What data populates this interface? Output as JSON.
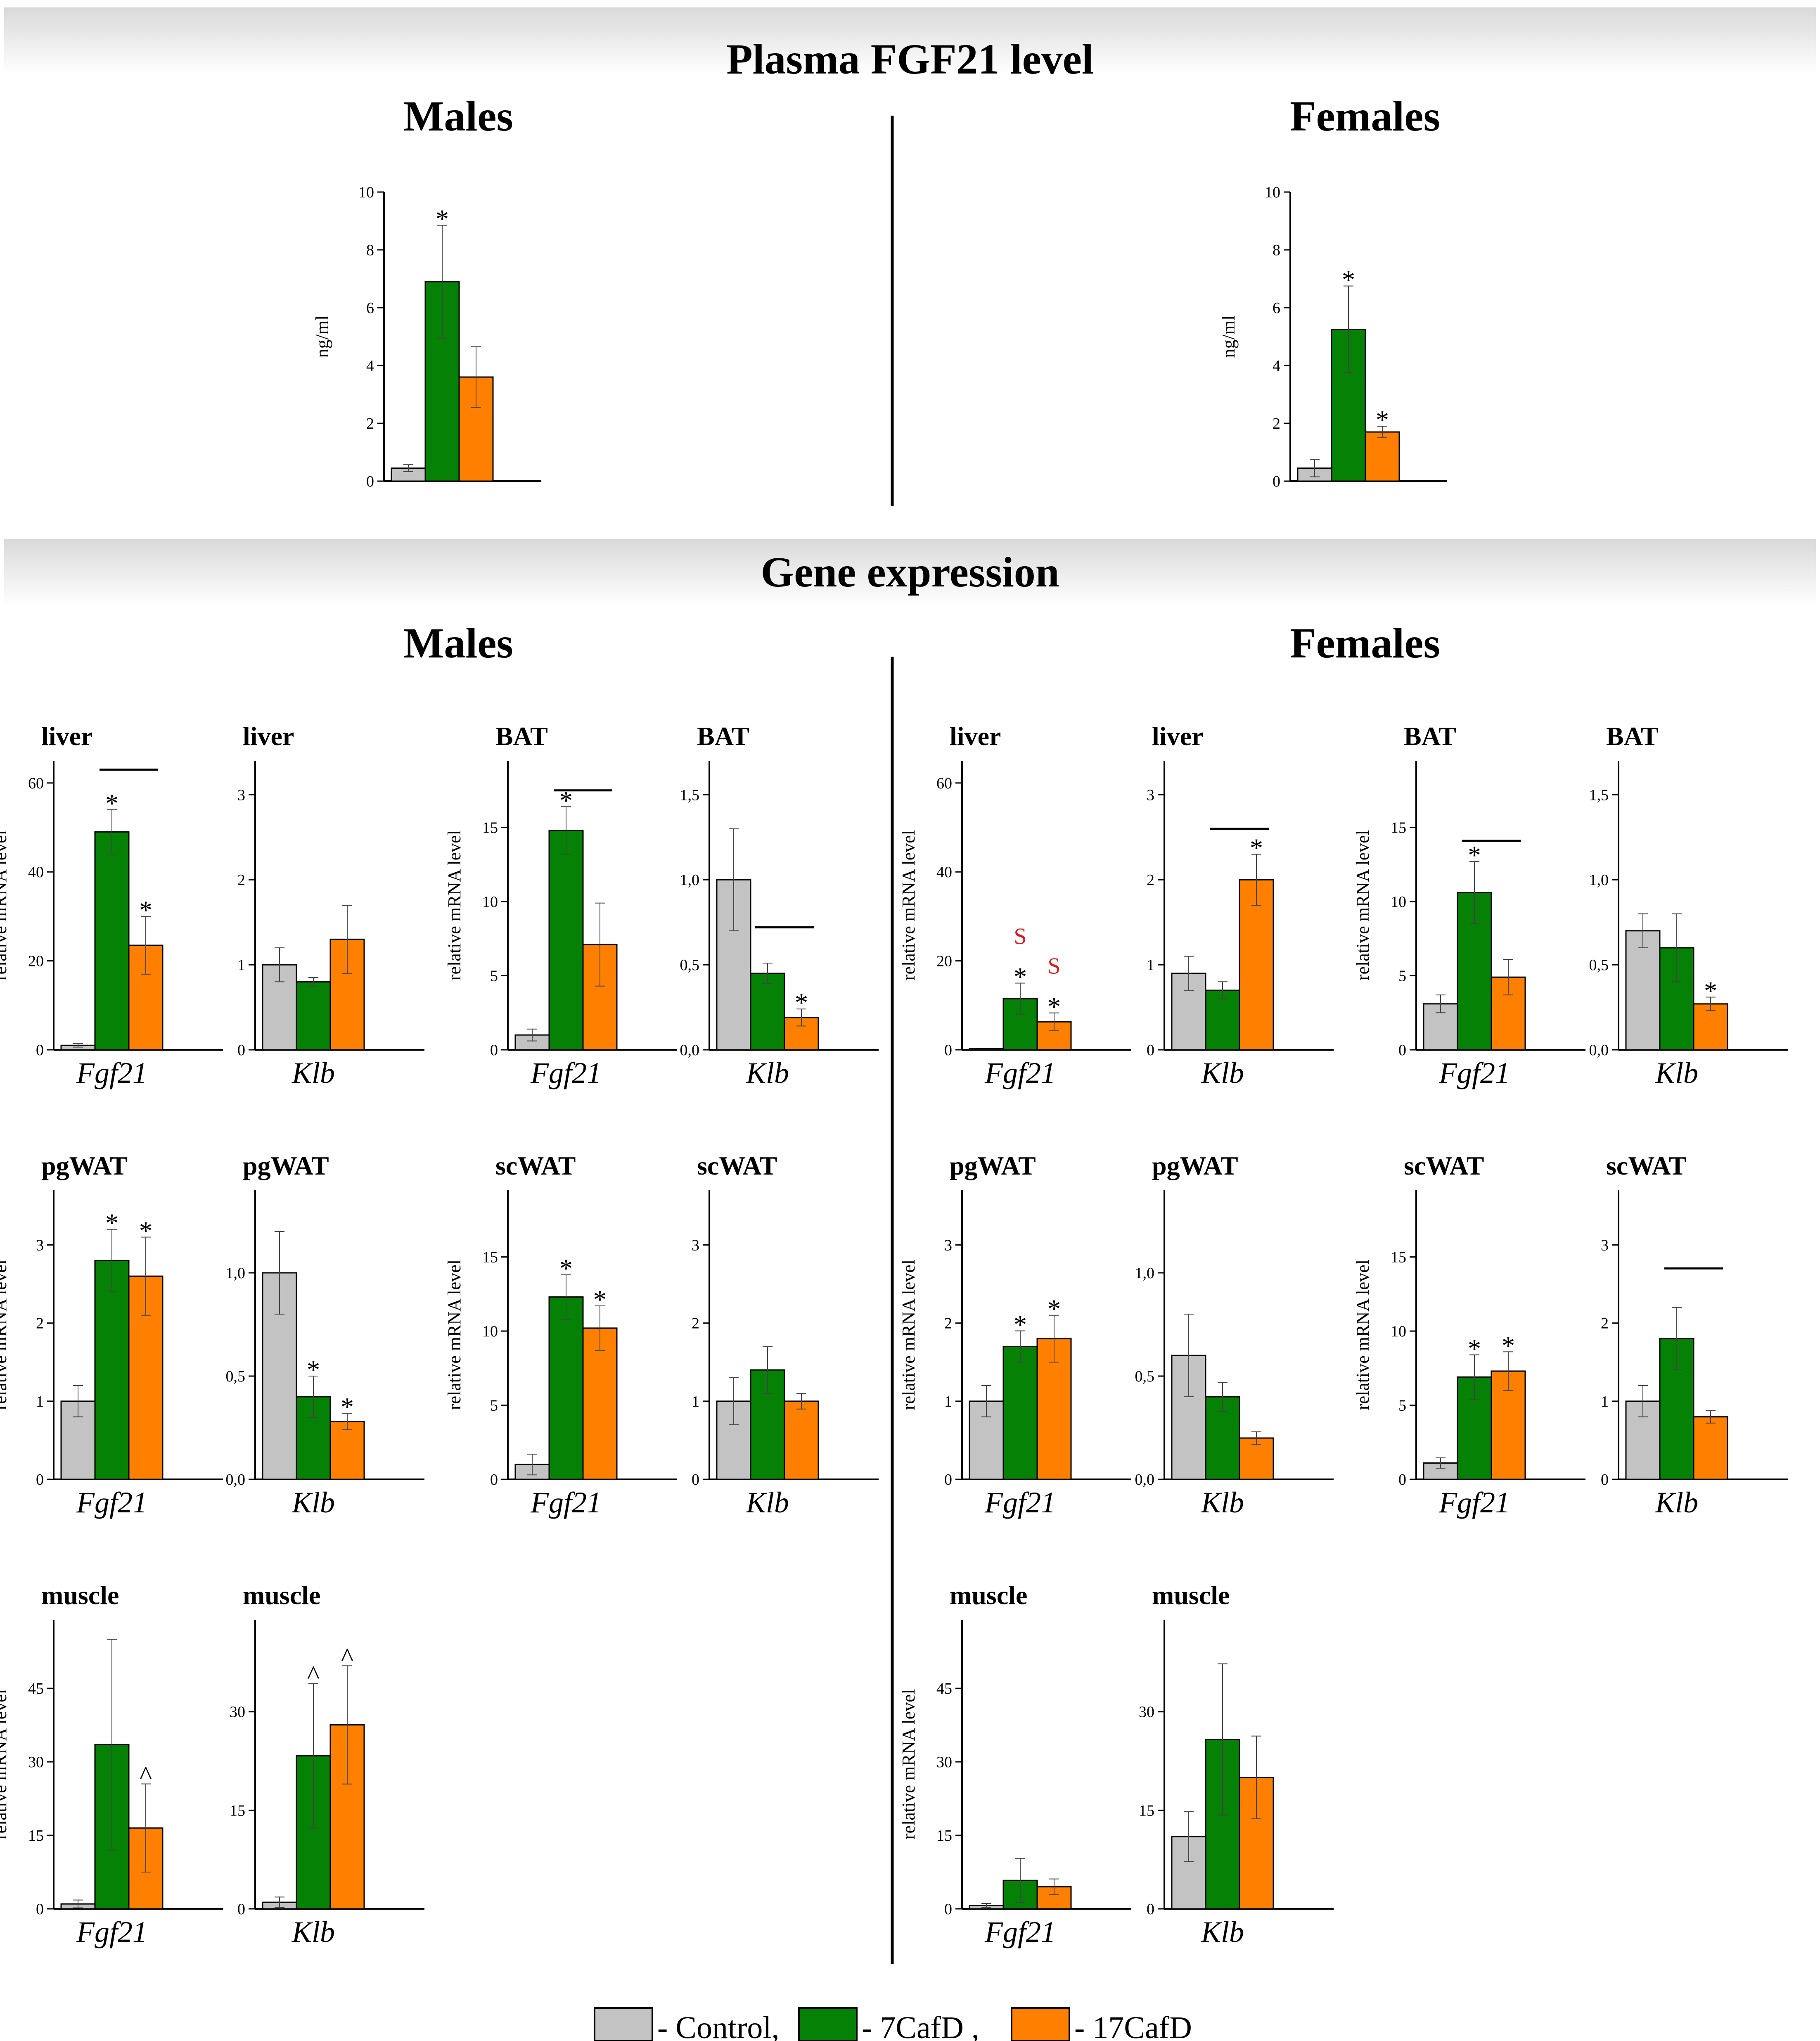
{
  "colors": {
    "control": "#c3c3c3",
    "cafd7": "#058105",
    "cafd17": "#ff8000",
    "stroke": "#000000",
    "red": "#e0191b"
  },
  "sections": {
    "plasma": "Plasma FGF21 level",
    "gene": "Gene expression"
  },
  "groups": {
    "males": "Males",
    "females": "Females"
  },
  "legend": [
    {
      "key": "control",
      "label": "- Control,"
    },
    {
      "key": "cafd7",
      "label": "- 7CafD ,"
    },
    {
      "key": "cafd17",
      "label": "- 17CafD"
    }
  ],
  "chart_data": [
    {
      "id": "plasma-males",
      "type": "bar",
      "title": "",
      "ylabel": "ng/ml",
      "ylim": [
        0,
        10
      ],
      "yticks": [
        "0",
        "2",
        "4",
        "6",
        "8",
        "10"
      ],
      "xlabel": "",
      "series": [
        {
          "name": "Control",
          "value": 0.45,
          "err": 0.12
        },
        {
          "name": "7CafD",
          "value": 6.9,
          "err": 1.95
        },
        {
          "name": "17CafD",
          "value": 3.6,
          "err": 1.05
        }
      ],
      "annotations": {
        "marks": [
          {
            "series": 1,
            "text": "*"
          }
        ],
        "lines": []
      }
    },
    {
      "id": "plasma-females",
      "type": "bar",
      "title": "",
      "ylabel": "ng/ml",
      "ylim": [
        0,
        10
      ],
      "yticks": [
        "0",
        "2",
        "4",
        "6",
        "8",
        "10"
      ],
      "xlabel": "",
      "series": [
        {
          "name": "Control",
          "value": 0.45,
          "err": 0.3
        },
        {
          "name": "7CafD",
          "value": 5.25,
          "err": 1.5
        },
        {
          "name": "17CafD",
          "value": 1.7,
          "err": 0.2
        }
      ],
      "annotations": {
        "marks": [
          {
            "series": 1,
            "text": "*"
          },
          {
            "series": 2,
            "text": "*"
          }
        ],
        "lines": []
      }
    },
    {
      "id": "m-liver-fgf21",
      "type": "bar",
      "title": "liver",
      "ylabel": "relative mRNA level",
      "ylim": [
        0,
        65
      ],
      "yticks": [
        "0",
        "20",
        "40",
        "60"
      ],
      "tickvals": [
        0,
        20,
        40,
        60
      ],
      "xlabel": "Fgf21",
      "series": [
        {
          "name": "Control",
          "value": 1,
          "err": 0.4
        },
        {
          "name": "7CafD",
          "value": 49,
          "err": 5
        },
        {
          "name": "17CafD",
          "value": 23.5,
          "err": 6.5
        }
      ],
      "annotations": {
        "marks": [
          {
            "series": 1,
            "text": "*"
          },
          {
            "series": 2,
            "text": "*"
          }
        ],
        "lines": [
          {
            "from": 1,
            "to": 2,
            "value": 63
          }
        ]
      }
    },
    {
      "id": "m-liver-klb",
      "type": "bar",
      "title": "liver",
      "ylabel": "",
      "ylim": [
        0,
        3.4
      ],
      "yticks": [
        "0",
        "1",
        "2",
        "3"
      ],
      "tickvals": [
        0,
        1,
        2,
        3
      ],
      "xlabel": "Klb",
      "series": [
        {
          "name": "Control",
          "value": 1,
          "err": 0.2
        },
        {
          "name": "7CafD",
          "value": 0.8,
          "err": 0.05
        },
        {
          "name": "17CafD",
          "value": 1.3,
          "err": 0.4
        }
      ],
      "annotations": {
        "marks": [],
        "lines": []
      }
    },
    {
      "id": "m-bat-fgf21",
      "type": "bar",
      "title": "BAT",
      "ylabel": "relative mRNA level",
      "ylim": [
        0,
        19.5
      ],
      "yticks": [
        "0",
        "5",
        "10",
        "15"
      ],
      "tickvals": [
        0,
        5,
        10,
        15
      ],
      "xlabel": "Fgf21",
      "series": [
        {
          "name": "Control",
          "value": 1,
          "err": 0.4
        },
        {
          "name": "7CafD",
          "value": 14.8,
          "err": 1.6
        },
        {
          "name": "17CafD",
          "value": 7.1,
          "err": 2.8
        }
      ],
      "annotations": {
        "marks": [
          {
            "series": 1,
            "text": "*"
          }
        ],
        "lines": [
          {
            "from": 1,
            "to": 2,
            "value": 17.5
          }
        ]
      }
    },
    {
      "id": "m-bat-klb",
      "type": "bar",
      "title": "BAT",
      "ylabel": "",
      "ylim": [
        0,
        1.7
      ],
      "yticks": [
        "0,0",
        "0,5",
        "1,0",
        "1,5"
      ],
      "tickvals": [
        0,
        0.5,
        1,
        1.5
      ],
      "xlabel": "Klb",
      "series": [
        {
          "name": "Control",
          "value": 1,
          "err": 0.3
        },
        {
          "name": "7CafD",
          "value": 0.45,
          "err": 0.06
        },
        {
          "name": "17CafD",
          "value": 0.19,
          "err": 0.05
        }
      ],
      "annotations": {
        "marks": [
          {
            "series": 2,
            "text": "*"
          }
        ],
        "lines": [
          {
            "from": 1,
            "to": 2,
            "value": 0.72
          }
        ]
      }
    },
    {
      "id": "m-pgwat-fgf21",
      "type": "bar",
      "title": "pgWAT",
      "ylabel": "relative mRNA level",
      "ylim": [
        0,
        3.7
      ],
      "yticks": [
        "0",
        "1",
        "2",
        "3"
      ],
      "tickvals": [
        0,
        1,
        2,
        3
      ],
      "xlabel": "Fgf21",
      "series": [
        {
          "name": "Control",
          "value": 1,
          "err": 0.2
        },
        {
          "name": "7CafD",
          "value": 2.8,
          "err": 0.4
        },
        {
          "name": "17CafD",
          "value": 2.6,
          "err": 0.5
        }
      ],
      "annotations": {
        "marks": [
          {
            "series": 1,
            "text": "*"
          },
          {
            "series": 2,
            "text": "*"
          }
        ],
        "lines": []
      }
    },
    {
      "id": "m-pgwat-klb",
      "type": "bar",
      "title": "pgWAT",
      "ylabel": "",
      "ylim": [
        0,
        1.4
      ],
      "yticks": [
        "0,0",
        "0,5",
        "1,0"
      ],
      "tickvals": [
        0,
        0.5,
        1
      ],
      "xlabel": "Klb",
      "series": [
        {
          "name": "Control",
          "value": 1,
          "err": 0.2
        },
        {
          "name": "7CafD",
          "value": 0.4,
          "err": 0.1
        },
        {
          "name": "17CafD",
          "value": 0.28,
          "err": 0.04
        }
      ],
      "annotations": {
        "marks": [
          {
            "series": 1,
            "text": "*"
          },
          {
            "series": 2,
            "text": "*"
          }
        ],
        "lines": []
      }
    },
    {
      "id": "m-scwat-fgf21",
      "type": "bar",
      "title": "scWAT",
      "ylabel": "relative mRNA level",
      "ylim": [
        0,
        19.5
      ],
      "yticks": [
        "0",
        "5",
        "10",
        "15"
      ],
      "tickvals": [
        0,
        5,
        10,
        15
      ],
      "xlabel": "Fgf21",
      "series": [
        {
          "name": "Control",
          "value": 1,
          "err": 0.7
        },
        {
          "name": "7CafD",
          "value": 12.3,
          "err": 1.5
        },
        {
          "name": "17CafD",
          "value": 10.2,
          "err": 1.5
        }
      ],
      "annotations": {
        "marks": [
          {
            "series": 1,
            "text": "*"
          },
          {
            "series": 2,
            "text": "*"
          }
        ],
        "lines": []
      }
    },
    {
      "id": "m-scwat-klb",
      "type": "bar",
      "title": "scWAT",
      "ylabel": "",
      "ylim": [
        0,
        3.7
      ],
      "yticks": [
        "0",
        "1",
        "2",
        "3"
      ],
      "tickvals": [
        0,
        1,
        2,
        3
      ],
      "xlabel": "Klb",
      "series": [
        {
          "name": "Control",
          "value": 1,
          "err": 0.3
        },
        {
          "name": "7CafD",
          "value": 1.4,
          "err": 0.3
        },
        {
          "name": "17CafD",
          "value": 1,
          "err": 0.1
        }
      ],
      "annotations": {
        "marks": [],
        "lines": []
      }
    },
    {
      "id": "m-muscle-fgf21",
      "type": "bar",
      "title": "muscle",
      "ylabel": "relative mRNA level",
      "ylim": [
        0,
        59
      ],
      "yticks": [
        "0",
        "15",
        "30",
        "45"
      ],
      "tickvals": [
        0,
        15,
        30,
        45
      ],
      "xlabel": "Fgf21",
      "series": [
        {
          "name": "Control",
          "value": 1,
          "err": 0.8
        },
        {
          "name": "7CafD",
          "value": 33.5,
          "err": 21.5
        },
        {
          "name": "17CafD",
          "value": 16.5,
          "err": 9
        }
      ],
      "annotations": {
        "marks": [
          {
            "series": 2,
            "text": "^"
          }
        ],
        "lines": []
      }
    },
    {
      "id": "m-muscle-klb",
      "type": "bar",
      "title": "muscle",
      "ylabel": "",
      "ylim": [
        0,
        44
      ],
      "yticks": [
        "0",
        "15",
        "30"
      ],
      "tickvals": [
        0,
        15,
        30
      ],
      "xlabel": "Klb",
      "series": [
        {
          "name": "Control",
          "value": 1,
          "err": 0.8
        },
        {
          "name": "7CafD",
          "value": 23.3,
          "err": 11
        },
        {
          "name": "17CafD",
          "value": 28,
          "err": 9
        }
      ],
      "annotations": {
        "marks": [
          {
            "series": 1,
            "text": "^"
          },
          {
            "series": 2,
            "text": "^"
          }
        ],
        "lines": []
      }
    },
    {
      "id": "f-liver-fgf21",
      "type": "bar",
      "title": "liver",
      "ylabel": "relative mRNA level",
      "ylim": [
        0,
        65
      ],
      "yticks": [
        "0",
        "20",
        "40",
        "60"
      ],
      "tickvals": [
        0,
        20,
        40,
        60
      ],
      "xlabel": "Fgf21",
      "series": [
        {
          "name": "Control",
          "value": 0.3,
          "err": 0
        },
        {
          "name": "7CafD",
          "value": 11.5,
          "err": 3.5
        },
        {
          "name": "17CafD",
          "value": 6.3,
          "err": 2
        }
      ],
      "annotations": {
        "marks": [
          {
            "series": 1,
            "text": "*"
          },
          {
            "series": 2,
            "text": "*"
          }
        ],
        "red": [
          {
            "series": 1,
            "text": "S"
          },
          {
            "series": 2,
            "text": "S"
          }
        ],
        "lines": []
      }
    },
    {
      "id": "f-liver-klb",
      "type": "bar",
      "title": "liver",
      "ylabel": "",
      "ylim": [
        0,
        3.4
      ],
      "yticks": [
        "0",
        "1",
        "2",
        "3"
      ],
      "tickvals": [
        0,
        1,
        2,
        3
      ],
      "xlabel": "Klb",
      "series": [
        {
          "name": "Control",
          "value": 0.9,
          "err": 0.2
        },
        {
          "name": "7CafD",
          "value": 0.7,
          "err": 0.1
        },
        {
          "name": "17CafD",
          "value": 2,
          "err": 0.3
        }
      ],
      "annotations": {
        "marks": [
          {
            "series": 2,
            "text": "*"
          }
        ],
        "lines": [
          {
            "from": 1,
            "to": 2,
            "value": 2.6
          }
        ]
      }
    },
    {
      "id": "f-bat-fgf21",
      "type": "bar",
      "title": "BAT",
      "ylabel": "relative mRNA level",
      "ylim": [
        0,
        19.5
      ],
      "yticks": [
        "0",
        "5",
        "10",
        "15"
      ],
      "tickvals": [
        0,
        5,
        10,
        15
      ],
      "xlabel": "Fgf21",
      "series": [
        {
          "name": "Control",
          "value": 3.1,
          "err": 0.6
        },
        {
          "name": "7CafD",
          "value": 10.6,
          "err": 2.1
        },
        {
          "name": "17CafD",
          "value": 4.9,
          "err": 1.2
        }
      ],
      "annotations": {
        "marks": [
          {
            "series": 1,
            "text": "*"
          }
        ],
        "lines": [
          {
            "from": 1,
            "to": 2,
            "value": 14.1
          }
        ]
      }
    },
    {
      "id": "f-bat-klb",
      "type": "bar",
      "title": "BAT",
      "ylabel": "",
      "ylim": [
        0,
        1.7
      ],
      "yticks": [
        "0,0",
        "0,5",
        "1,0",
        "1,5"
      ],
      "tickvals": [
        0,
        0.5,
        1,
        1.5
      ],
      "xlabel": "Klb",
      "series": [
        {
          "name": "Control",
          "value": 0.7,
          "err": 0.1
        },
        {
          "name": "7CafD",
          "value": 0.6,
          "err": 0.2
        },
        {
          "name": "17CafD",
          "value": 0.27,
          "err": 0.04
        }
      ],
      "annotations": {
        "marks": [
          {
            "series": 2,
            "text": "*"
          }
        ],
        "lines": []
      }
    },
    {
      "id": "f-pgwat-fgf21",
      "type": "bar",
      "title": "pgWAT",
      "ylabel": "relative mRNA level",
      "ylim": [
        0,
        3.7
      ],
      "yticks": [
        "0",
        "1",
        "2",
        "3"
      ],
      "tickvals": [
        0,
        1,
        2,
        3
      ],
      "xlabel": "Fgf21",
      "series": [
        {
          "name": "Control",
          "value": 1,
          "err": 0.2
        },
        {
          "name": "7CafD",
          "value": 1.7,
          "err": 0.2
        },
        {
          "name": "17CafD",
          "value": 1.8,
          "err": 0.3
        }
      ],
      "annotations": {
        "marks": [
          {
            "series": 1,
            "text": "*"
          },
          {
            "series": 2,
            "text": "*"
          }
        ],
        "lines": []
      }
    },
    {
      "id": "f-pgwat-klb",
      "type": "bar",
      "title": "pgWAT",
      "ylabel": "",
      "ylim": [
        0,
        1.4
      ],
      "yticks": [
        "0,0",
        "0,5",
        "1,0"
      ],
      "tickvals": [
        0,
        0.5,
        1
      ],
      "xlabel": "Klb",
      "series": [
        {
          "name": "Control",
          "value": 0.6,
          "err": 0.2
        },
        {
          "name": "7CafD",
          "value": 0.4,
          "err": 0.07
        },
        {
          "name": "17CafD",
          "value": 0.2,
          "err": 0.03
        }
      ],
      "annotations": {
        "marks": [],
        "lines": []
      }
    },
    {
      "id": "f-scwat-fgf21",
      "type": "bar",
      "title": "scWAT",
      "ylabel": "relative mRNA level",
      "ylim": [
        0,
        19.5
      ],
      "yticks": [
        "0",
        "5",
        "10",
        "15"
      ],
      "tickvals": [
        0,
        5,
        10,
        15
      ],
      "xlabel": "Fgf21",
      "series": [
        {
          "name": "Control",
          "value": 1.1,
          "err": 0.35
        },
        {
          "name": "7CafD",
          "value": 6.9,
          "err": 1.5
        },
        {
          "name": "17CafD",
          "value": 7.3,
          "err": 1.3
        }
      ],
      "annotations": {
        "marks": [
          {
            "series": 1,
            "text": "*"
          },
          {
            "series": 2,
            "text": "*"
          }
        ],
        "lines": []
      }
    },
    {
      "id": "f-scwat-klb",
      "type": "bar",
      "title": "scWAT",
      "ylabel": "",
      "ylim": [
        0,
        3.7
      ],
      "yticks": [
        "0",
        "1",
        "2",
        "3"
      ],
      "tickvals": [
        0,
        1,
        2,
        3
      ],
      "xlabel": "Klb",
      "series": [
        {
          "name": "Control",
          "value": 1,
          "err": 0.2
        },
        {
          "name": "7CafD",
          "value": 1.8,
          "err": 0.4
        },
        {
          "name": "17CafD",
          "value": 0.8,
          "err": 0.08
        }
      ],
      "annotations": {
        "marks": [],
        "lines": [
          {
            "from": 1,
            "to": 2,
            "value": 2.7
          }
        ]
      }
    },
    {
      "id": "f-muscle-fgf21",
      "type": "bar",
      "title": "muscle",
      "ylabel": "relative mRNA level",
      "ylim": [
        0,
        59
      ],
      "yticks": [
        "0",
        "15",
        "30",
        "45"
      ],
      "tickvals": [
        0,
        15,
        30,
        45
      ],
      "xlabel": "Fgf21",
      "series": [
        {
          "name": "Control",
          "value": 0.7,
          "err": 0.4
        },
        {
          "name": "7CafD",
          "value": 5.8,
          "err": 4.5
        },
        {
          "name": "17CafD",
          "value": 4.5,
          "err": 1.6
        }
      ],
      "annotations": {
        "marks": [],
        "lines": []
      }
    },
    {
      "id": "f-muscle-klb",
      "type": "bar",
      "title": "muscle",
      "ylabel": "",
      "ylim": [
        0,
        44
      ],
      "yticks": [
        "0",
        "15",
        "30"
      ],
      "tickvals": [
        0,
        15,
        30
      ],
      "xlabel": "Klb",
      "series": [
        {
          "name": "Control",
          "value": 11,
          "err": 3.8
        },
        {
          "name": "7CafD",
          "value": 25.8,
          "err": 11.5
        },
        {
          "name": "17CafD",
          "value": 20,
          "err": 6.3
        }
      ],
      "annotations": {
        "marks": [],
        "lines": []
      }
    }
  ]
}
